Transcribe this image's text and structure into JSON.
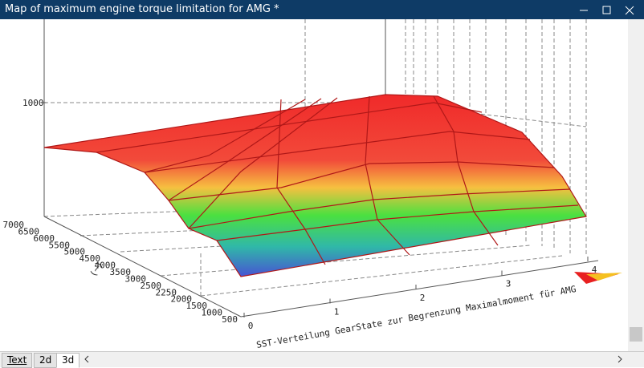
{
  "window": {
    "title": "Map of maximum engine torque limitation for AMG *"
  },
  "plot": {
    "z_ticks": [
      "1000"
    ],
    "y_label": "(~)",
    "y_ticks": [
      "500",
      "1000",
      "1500",
      "2000",
      "2250",
      "2500",
      "3000",
      "3500",
      "4000",
      "4500",
      "5000",
      "5500",
      "6000",
      "6500",
      "7000"
    ],
    "x_ticks": [
      "0",
      "1",
      "2",
      "3",
      "4"
    ],
    "x_label": "SST-Verteilung GearState zur Begrenzung Maximalmoment für AMG"
  },
  "tabs": [
    "Text",
    "2d",
    "3d"
  ]
}
